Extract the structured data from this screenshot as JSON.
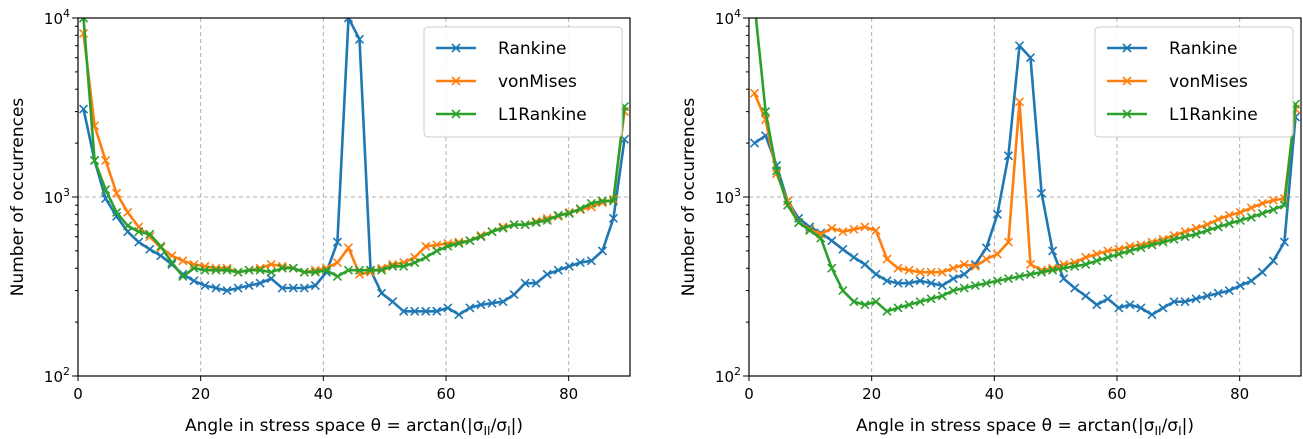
{
  "chart_data": [
    {
      "type": "line",
      "title": "",
      "xlabel": "Angle in stress space θ = arctan(|σ_II/σ_I|)",
      "ylabel": "Number of occurrences",
      "x_scale": "linear",
      "y_scale": "log",
      "xlim": [
        0,
        90
      ],
      "ylim": [
        100,
        10000
      ],
      "x_ticks": [
        0,
        20,
        40,
        60,
        80
      ],
      "y_ticks": [
        {
          "value": 100,
          "base": "10",
          "exp": "2"
        },
        {
          "value": 1000,
          "base": "10",
          "exp": "3"
        },
        {
          "value": 10000,
          "base": "10",
          "exp": "4"
        }
      ],
      "grid": true,
      "legend_position": "top-right",
      "series": [
        {
          "name": "Rankine",
          "color": "#1f77b4",
          "marker": "x",
          "x": [
            0.9,
            2.7,
            4.5,
            6.3,
            8.1,
            9.9,
            11.7,
            13.5,
            15.3,
            17.1,
            18.9,
            20.7,
            22.5,
            24.3,
            26.1,
            27.9,
            29.7,
            31.5,
            33.3,
            35.1,
            36.9,
            38.7,
            40.5,
            42.3,
            44.1,
            45.9,
            47.7,
            49.5,
            51.3,
            53.1,
            54.9,
            56.7,
            58.5,
            60.3,
            62.1,
            63.9,
            65.7,
            67.5,
            69.3,
            71.1,
            72.9,
            74.7,
            76.5,
            78.3,
            80.1,
            81.9,
            83.7,
            85.5,
            87.3,
            89.1
          ],
          "y": [
            3100,
            1600,
            980,
            780,
            640,
            560,
            510,
            470,
            420,
            370,
            340,
            320,
            310,
            300,
            310,
            320,
            330,
            350,
            310,
            310,
            310,
            320,
            380,
            560,
            10000,
            7600,
            390,
            290,
            260,
            230,
            230,
            230,
            230,
            240,
            220,
            240,
            250,
            255,
            260,
            285,
            330,
            330,
            370,
            390,
            410,
            430,
            440,
            500,
            760,
            2100
          ]
        },
        {
          "name": "vonMises",
          "color": "#ff7f0e",
          "marker": "x",
          "x": [
            0.9,
            2.7,
            4.5,
            6.3,
            8.1,
            9.9,
            11.7,
            13.5,
            15.3,
            17.1,
            18.9,
            20.7,
            22.5,
            24.3,
            26.1,
            27.9,
            29.7,
            31.5,
            33.3,
            35.1,
            36.9,
            38.7,
            40.5,
            42.3,
            44.1,
            45.9,
            47.7,
            49.5,
            51.3,
            53.1,
            54.9,
            56.7,
            58.5,
            60.3,
            62.1,
            63.9,
            65.7,
            67.5,
            69.3,
            71.1,
            72.9,
            74.7,
            76.5,
            78.3,
            80.1,
            81.9,
            83.7,
            85.5,
            87.3,
            89.1
          ],
          "y": [
            8200,
            2500,
            1600,
            1050,
            820,
            680,
            600,
            520,
            470,
            440,
            420,
            410,
            400,
            400,
            380,
            390,
            400,
            420,
            410,
            400,
            380,
            390,
            400,
            430,
            520,
            370,
            380,
            400,
            420,
            430,
            460,
            530,
            540,
            550,
            560,
            570,
            610,
            640,
            680,
            700,
            700,
            730,
            760,
            780,
            820,
            850,
            880,
            930,
            970,
            3000
          ]
        },
        {
          "name": "L1Rankine",
          "color": "#2ca02c",
          "marker": "x",
          "x": [
            0.9,
            2.7,
            4.5,
            6.3,
            8.1,
            9.9,
            11.7,
            13.5,
            15.3,
            17.1,
            18.9,
            20.7,
            22.5,
            24.3,
            26.1,
            27.9,
            29.7,
            31.5,
            33.3,
            35.1,
            36.9,
            38.7,
            40.5,
            42.3,
            44.1,
            45.9,
            47.7,
            49.5,
            51.3,
            53.1,
            54.9,
            56.7,
            58.5,
            60.3,
            62.1,
            63.9,
            65.7,
            67.5,
            69.3,
            71.1,
            72.9,
            74.7,
            76.5,
            78.3,
            80.1,
            81.9,
            83.7,
            85.5,
            87.3,
            89.1
          ],
          "y": [
            10000,
            1600,
            1100,
            820,
            690,
            640,
            620,
            530,
            430,
            360,
            400,
            390,
            390,
            390,
            380,
            390,
            390,
            380,
            400,
            400,
            380,
            380,
            390,
            360,
            390,
            390,
            390,
            390,
            410,
            410,
            430,
            460,
            500,
            530,
            550,
            570,
            600,
            640,
            670,
            700,
            700,
            720,
            740,
            790,
            810,
            860,
            920,
            950,
            950,
            3200
          ]
        }
      ]
    },
    {
      "type": "line",
      "title": "",
      "xlabel": "Angle in stress space θ = arctan(|σ_II/σ_I|)",
      "ylabel": "Number of occurrences",
      "x_scale": "linear",
      "y_scale": "log",
      "xlim": [
        0,
        90
      ],
      "ylim": [
        100,
        10000
      ],
      "x_ticks": [
        0,
        20,
        40,
        60,
        80
      ],
      "y_ticks": [
        {
          "value": 100,
          "base": "10",
          "exp": "2"
        },
        {
          "value": 1000,
          "base": "10",
          "exp": "3"
        },
        {
          "value": 10000,
          "base": "10",
          "exp": "4"
        }
      ],
      "grid": true,
      "legend_position": "top-right",
      "series": [
        {
          "name": "Rankine",
          "color": "#1f77b4",
          "marker": "x",
          "x": [
            0.9,
            2.7,
            4.5,
            6.3,
            8.1,
            9.9,
            11.7,
            13.5,
            15.3,
            17.1,
            18.9,
            20.7,
            22.5,
            24.3,
            26.1,
            27.9,
            29.7,
            31.5,
            33.3,
            35.1,
            36.9,
            38.7,
            40.5,
            42.3,
            44.1,
            45.9,
            47.7,
            49.5,
            51.3,
            53.1,
            54.9,
            56.7,
            58.5,
            60.3,
            62.1,
            63.9,
            65.7,
            67.5,
            69.3,
            71.1,
            72.9,
            74.7,
            76.5,
            78.3,
            80.1,
            81.9,
            83.7,
            85.5,
            87.3,
            89.1
          ],
          "y": [
            2000,
            2200,
            1500,
            950,
            760,
            680,
            630,
            570,
            510,
            460,
            420,
            370,
            340,
            330,
            330,
            340,
            330,
            320,
            350,
            370,
            420,
            520,
            800,
            1700,
            7000,
            6000,
            1050,
            500,
            350,
            310,
            280,
            250,
            270,
            240,
            250,
            240,
            220,
            240,
            260,
            260,
            270,
            280,
            290,
            300,
            320,
            340,
            380,
            440,
            560,
            2800
          ]
        },
        {
          "name": "vonMises",
          "color": "#ff7f0e",
          "marker": "x",
          "x": [
            0.9,
            2.7,
            4.5,
            6.3,
            8.1,
            9.9,
            11.7,
            13.5,
            15.3,
            17.1,
            18.9,
            20.7,
            22.5,
            24.3,
            26.1,
            27.9,
            29.7,
            31.5,
            33.3,
            35.1,
            36.9,
            38.7,
            40.5,
            42.3,
            44.1,
            45.9,
            47.7,
            49.5,
            51.3,
            53.1,
            54.9,
            56.7,
            58.5,
            60.3,
            62.1,
            63.9,
            65.7,
            67.5,
            69.3,
            71.1,
            72.9,
            74.7,
            76.5,
            78.3,
            80.1,
            81.9,
            83.7,
            85.5,
            87.3,
            89.1
          ],
          "y": [
            3800,
            2700,
            1350,
            950,
            720,
            660,
            620,
            670,
            640,
            660,
            680,
            650,
            450,
            400,
            390,
            380,
            380,
            380,
            400,
            420,
            410,
            450,
            480,
            560,
            3400,
            420,
            390,
            400,
            420,
            430,
            460,
            480,
            500,
            510,
            530,
            540,
            560,
            580,
            610,
            640,
            670,
            700,
            750,
            790,
            820,
            870,
            920,
            960,
            980,
            3100
          ]
        },
        {
          "name": "L1Rankine",
          "color": "#2ca02c",
          "marker": "x",
          "x": [
            0.9,
            2.7,
            4.5,
            6.3,
            8.1,
            9.9,
            11.7,
            13.5,
            15.3,
            17.1,
            18.9,
            20.7,
            22.5,
            24.3,
            26.1,
            27.9,
            29.7,
            31.5,
            33.3,
            35.1,
            36.9,
            38.7,
            40.5,
            42.3,
            44.1,
            45.9,
            47.7,
            49.5,
            51.3,
            53.1,
            54.9,
            56.7,
            58.5,
            60.3,
            62.1,
            63.9,
            65.7,
            67.5,
            69.3,
            71.1,
            72.9,
            74.7,
            76.5,
            78.3,
            80.1,
            81.9,
            83.7,
            85.5,
            87.3,
            89.1
          ],
          "y": [
            12000,
            3000,
            1400,
            900,
            720,
            650,
            590,
            400,
            300,
            260,
            250,
            260,
            230,
            240,
            250,
            260,
            270,
            280,
            300,
            310,
            320,
            330,
            340,
            350,
            360,
            370,
            380,
            390,
            400,
            410,
            420,
            440,
            460,
            480,
            500,
            520,
            540,
            560,
            580,
            600,
            620,
            650,
            680,
            710,
            740,
            770,
            810,
            850,
            900,
            3300
          ]
        }
      ]
    }
  ]
}
